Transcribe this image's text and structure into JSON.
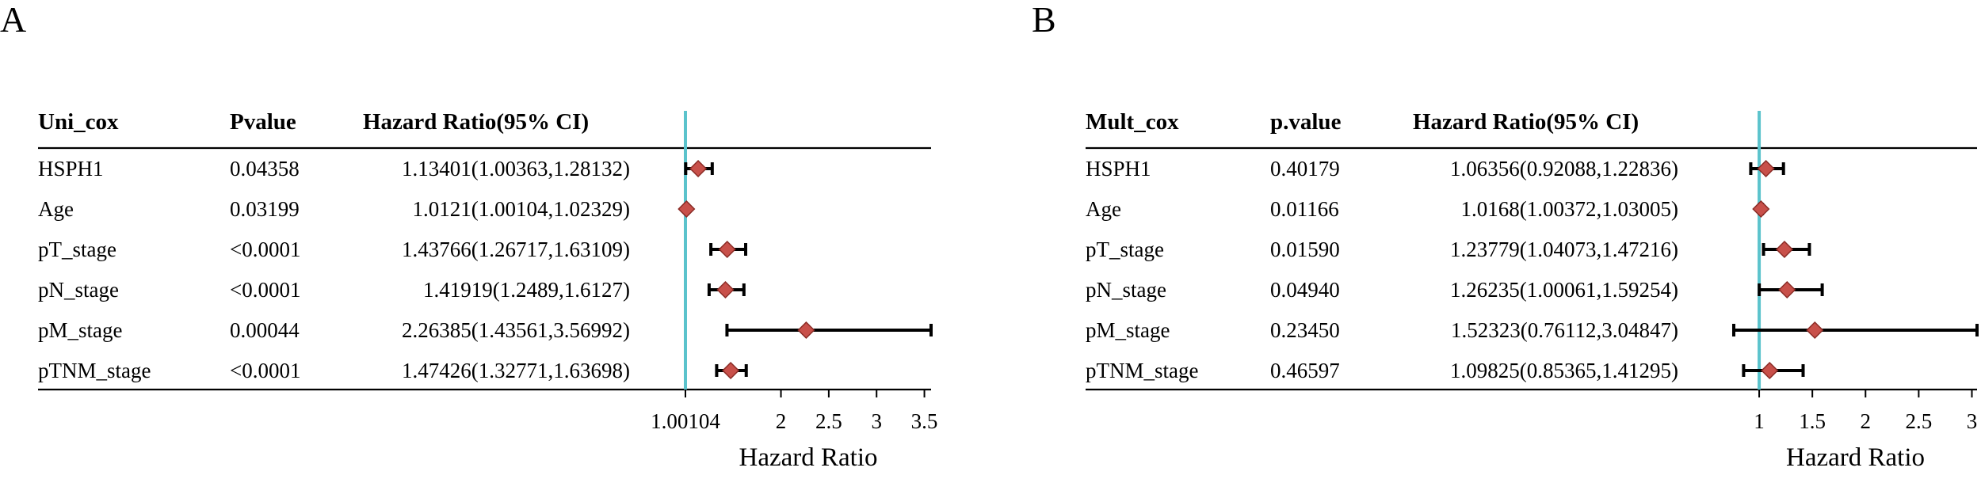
{
  "chart_data": [
    {
      "panel_label": "A",
      "type": "forest",
      "columns": [
        "Uni_cox",
        "Pvalue",
        "Hazard Ratio(95% CI)"
      ],
      "rows": [
        {
          "label": "HSPH1",
          "p": "0.04358",
          "text": "1.13401(1.00363,1.28132)",
          "hr": 1.13401,
          "lower": 1.00363,
          "upper": 1.28132
        },
        {
          "label": "Age",
          "p": "0.03199",
          "text": "1.0121(1.00104,1.02329)",
          "hr": 1.0121,
          "lower": 1.00104,
          "upper": 1.02329
        },
        {
          "label": "pT_stage",
          "p": "<0.0001",
          "text": "1.43766(1.26717,1.63109)",
          "hr": 1.43766,
          "lower": 1.26717,
          "upper": 1.63109
        },
        {
          "label": "pN_stage",
          "p": "<0.0001",
          "text": "1.41919(1.2489,1.6127)",
          "hr": 1.41919,
          "lower": 1.2489,
          "upper": 1.6127
        },
        {
          "label": "pM_stage",
          "p": "0.00044",
          "text": "2.26385(1.43561,3.56992)",
          "hr": 2.26385,
          "lower": 1.43561,
          "upper": 3.56992
        },
        {
          "label": "pTNM_stage",
          "p": "<0.0001",
          "text": "1.47426(1.32771,1.63698)",
          "hr": 1.47426,
          "lower": 1.32771,
          "upper": 1.63698
        }
      ],
      "xlabel": "Hazard Ratio",
      "ticks": [
        1.00104,
        2,
        2.5,
        3,
        3.5
      ],
      "tick_labels": [
        "1.00104",
        "2",
        "2.5",
        "3",
        "3.5"
      ],
      "xlim": [
        1.00104,
        3.56992
      ],
      "reference_line": 1.00104
    },
    {
      "panel_label": "B",
      "type": "forest",
      "columns": [
        "Mult_cox",
        "p.value",
        "Hazard Ratio(95% CI)"
      ],
      "rows": [
        {
          "label": "HSPH1",
          "p": "0.40179",
          "text": "1.06356(0.92088,1.22836)",
          "hr": 1.06356,
          "lower": 0.92088,
          "upper": 1.22836
        },
        {
          "label": "Age",
          "p": "0.01166",
          "text": "1.0168(1.00372,1.03005)",
          "hr": 1.0168,
          "lower": 1.00372,
          "upper": 1.03005
        },
        {
          "label": "pT_stage",
          "p": "0.01590",
          "text": "1.23779(1.04073,1.47216)",
          "hr": 1.23779,
          "lower": 1.04073,
          "upper": 1.47216
        },
        {
          "label": "pN_stage",
          "p": "0.04940",
          "text": "1.26235(1.00061,1.59254)",
          "hr": 1.26235,
          "lower": 1.00061,
          "upper": 1.59254
        },
        {
          "label": "pM_stage",
          "p": "0.23450",
          "text": "1.52323(0.76112,3.04847)",
          "hr": 1.52323,
          "lower": 0.76112,
          "upper": 3.04847
        },
        {
          "label": "pTNM_stage",
          "p": "0.46597",
          "text": "1.09825(0.85365,1.41295)",
          "hr": 1.09825,
          "lower": 0.85365,
          "upper": 1.41295
        }
      ],
      "xlabel": "Hazard Ratio",
      "ticks": [
        1,
        1.5,
        2,
        2.5,
        3
      ],
      "tick_labels": [
        "1",
        "1.5",
        "2",
        "2.5",
        "3"
      ],
      "xlim": [
        0.76112,
        3.04847
      ],
      "reference_line": 1
    }
  ],
  "style": {
    "marker_fill": "#c8504a",
    "marker_stroke": "#8a2b25",
    "reference_line_color": "#5bc3cc",
    "ci_color": "#000000"
  }
}
